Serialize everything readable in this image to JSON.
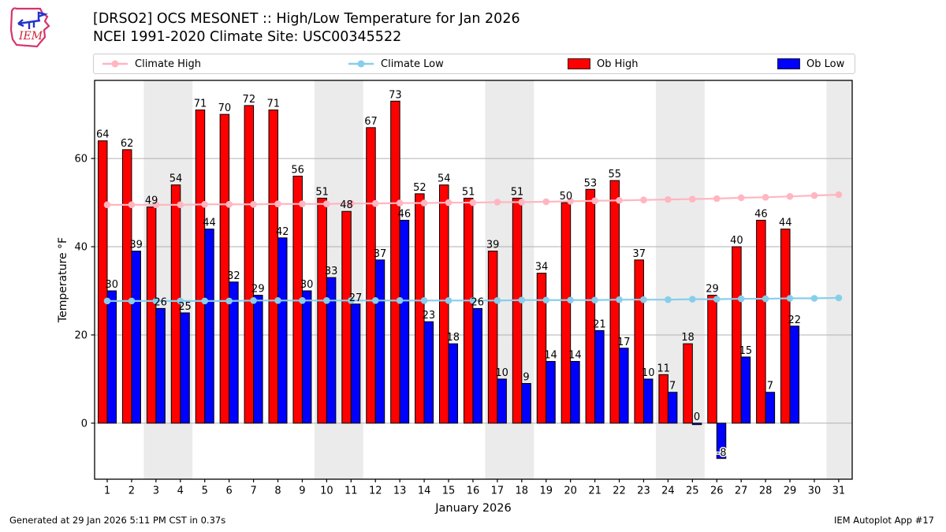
{
  "header": {
    "title_line1": "[DRSO2] OCS MESONET :: High/Low Temperature for Jan 2026",
    "title_line2": "NCEI 1991-2020 Climate Site: USC00345522",
    "logo_text": "IEM"
  },
  "footer": {
    "generated": "Generated at 29 Jan 2026 5:11 PM CST in 0.37s",
    "app": "IEM Autoplot App #17"
  },
  "chart_data": {
    "type": "bar",
    "title": "[DRSO2] OCS MESONET :: High/Low Temperature for Jan 2026",
    "subtitle": "NCEI 1991-2020 Climate Site: USC00345522",
    "xlabel": "January 2026",
    "ylabel": "Temperature °F",
    "x": [
      1,
      2,
      3,
      4,
      5,
      6,
      7,
      8,
      9,
      10,
      11,
      12,
      13,
      14,
      15,
      16,
      17,
      18,
      19,
      20,
      21,
      22,
      23,
      24,
      25,
      26,
      27,
      28,
      29,
      30,
      31
    ],
    "ylim": [
      -12.7,
      77.7
    ],
    "yticks": [
      0,
      20,
      40,
      60
    ],
    "grid": "horizontal",
    "legend_position": "top",
    "weekend_bands": [
      [
        2.5,
        4.5
      ],
      [
        9.5,
        11.5
      ],
      [
        16.5,
        18.5
      ],
      [
        23.5,
        25.5
      ],
      [
        30.5,
        31.6
      ]
    ],
    "band_color": "#ebebeb",
    "grid_color": "#b0b0b0",
    "series": [
      {
        "name": "Climate High",
        "type": "line",
        "color": "#ffb6c1",
        "values": [
          49.5,
          49.5,
          49.5,
          49.5,
          49.6,
          49.6,
          49.6,
          49.7,
          49.7,
          49.7,
          49.8,
          49.8,
          49.9,
          49.9,
          50.0,
          50.0,
          50.1,
          50.1,
          50.2,
          50.3,
          50.4,
          50.5,
          50.6,
          50.7,
          50.8,
          50.9,
          51.1,
          51.2,
          51.4,
          51.6,
          51.8
        ]
      },
      {
        "name": "Climate Low",
        "type": "line",
        "color": "#87ceeb",
        "values": [
          27.7,
          27.7,
          27.7,
          27.7,
          27.7,
          27.7,
          27.8,
          27.8,
          27.8,
          27.8,
          27.8,
          27.8,
          27.8,
          27.8,
          27.8,
          27.8,
          27.8,
          27.9,
          27.9,
          27.9,
          27.9,
          28.0,
          28.0,
          28.0,
          28.1,
          28.1,
          28.2,
          28.2,
          28.3,
          28.3,
          28.4
        ]
      },
      {
        "name": "Ob High",
        "type": "bar",
        "side": "left",
        "color": "#ff0000",
        "values": [
          64,
          62,
          49,
          54,
          71,
          70,
          72,
          71,
          56,
          51,
          48,
          67,
          73,
          52,
          54,
          51,
          39,
          51,
          34,
          50,
          53,
          55,
          37,
          11,
          18,
          29,
          40,
          46,
          44,
          null,
          null
        ]
      },
      {
        "name": "Ob Low",
        "type": "bar",
        "side": "right",
        "color": "#0000ff",
        "values": [
          30,
          39,
          26,
          25,
          44,
          32,
          29,
          42,
          30,
          33,
          27,
          37,
          46,
          23,
          18,
          26,
          10,
          9,
          14,
          14,
          21,
          17,
          10,
          7,
          0,
          -8,
          15,
          7,
          22,
          null,
          null
        ]
      }
    ]
  }
}
